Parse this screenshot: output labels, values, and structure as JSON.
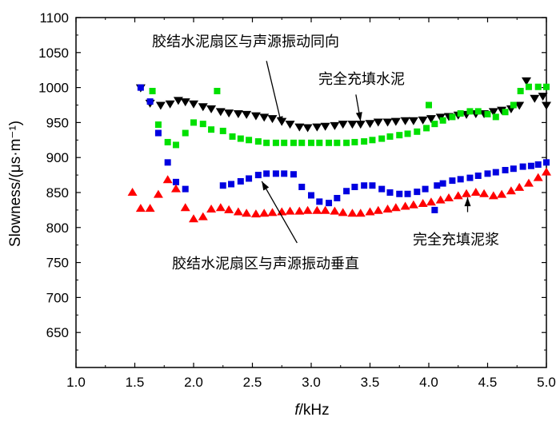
{
  "chart_data": {
    "type": "scatter",
    "xlabel_italic": "f",
    "xlabel_rest": "/kHz",
    "ylabel": "Slowness/(μs·m⁻¹)",
    "xlim": [
      1.0,
      5.0
    ],
    "ylim": [
      600,
      1100
    ],
    "xticks": [
      "1.0",
      "1.5",
      "2.0",
      "2.5",
      "3.0",
      "3.5",
      "4.0",
      "4.5",
      "5.0"
    ],
    "yticks": [
      "650",
      "700",
      "750",
      "800",
      "850",
      "900",
      "950",
      "1000",
      "1050",
      "1100"
    ],
    "series": [
      {
        "name": "完全充填水泥",
        "marker": "triangle-down",
        "color": "#000000",
        "points": [
          [
            1.55,
            1000
          ],
          [
            1.63,
            978
          ],
          [
            1.72,
            975
          ],
          [
            1.8,
            977
          ],
          [
            1.87,
            982
          ],
          [
            1.93,
            980
          ],
          [
            2.0,
            977
          ],
          [
            2.08,
            973
          ],
          [
            2.15,
            970
          ],
          [
            2.23,
            966
          ],
          [
            2.3,
            964
          ],
          [
            2.38,
            963
          ],
          [
            2.45,
            962
          ],
          [
            2.53,
            960
          ],
          [
            2.6,
            958
          ],
          [
            2.67,
            956
          ],
          [
            2.75,
            952
          ],
          [
            2.82,
            948
          ],
          [
            2.9,
            944
          ],
          [
            2.97,
            943
          ],
          [
            3.05,
            944
          ],
          [
            3.12,
            945
          ],
          [
            3.2,
            946
          ],
          [
            3.27,
            948
          ],
          [
            3.35,
            948
          ],
          [
            3.42,
            948
          ],
          [
            3.5,
            949
          ],
          [
            3.57,
            951
          ],
          [
            3.65,
            951
          ],
          [
            3.72,
            952
          ],
          [
            3.8,
            953
          ],
          [
            3.87,
            953
          ],
          [
            3.95,
            954
          ],
          [
            4.02,
            956
          ],
          [
            4.1,
            958
          ],
          [
            4.17,
            959
          ],
          [
            4.25,
            961
          ],
          [
            4.32,
            962
          ],
          [
            4.4,
            963
          ],
          [
            4.47,
            963
          ],
          [
            4.55,
            966
          ],
          [
            4.62,
            968
          ],
          [
            4.7,
            970
          ],
          [
            4.77,
            975
          ],
          [
            4.83,
            1010
          ],
          [
            4.9,
            985
          ],
          [
            4.97,
            988
          ],
          [
            5.0,
            975
          ]
        ]
      },
      {
        "name": "胶结水泥扇区与声源振动同向",
        "marker": "square",
        "color": "#00e000",
        "points": [
          [
            1.65,
            995
          ],
          [
            1.7,
            947
          ],
          [
            1.78,
            922
          ],
          [
            1.85,
            918
          ],
          [
            1.93,
            935
          ],
          [
            2.0,
            950
          ],
          [
            2.08,
            948
          ],
          [
            2.15,
            940
          ],
          [
            2.2,
            995
          ],
          [
            2.25,
            938
          ],
          [
            2.33,
            930
          ],
          [
            2.4,
            927
          ],
          [
            2.47,
            925
          ],
          [
            2.55,
            923
          ],
          [
            2.62,
            921
          ],
          [
            2.7,
            921
          ],
          [
            2.77,
            921
          ],
          [
            2.85,
            921
          ],
          [
            2.92,
            921
          ],
          [
            3.0,
            921
          ],
          [
            3.07,
            921
          ],
          [
            3.15,
            921
          ],
          [
            3.22,
            921
          ],
          [
            3.3,
            921
          ],
          [
            3.37,
            922
          ],
          [
            3.45,
            923
          ],
          [
            3.52,
            925
          ],
          [
            3.6,
            927
          ],
          [
            3.67,
            930
          ],
          [
            3.75,
            932
          ],
          [
            3.82,
            934
          ],
          [
            3.9,
            937
          ],
          [
            3.98,
            942
          ],
          [
            4.0,
            975
          ],
          [
            4.05,
            948
          ],
          [
            4.12,
            953
          ],
          [
            4.2,
            958
          ],
          [
            4.27,
            963
          ],
          [
            4.35,
            966
          ],
          [
            4.42,
            966
          ],
          [
            4.5,
            962
          ],
          [
            4.57,
            958
          ],
          [
            4.65,
            965
          ],
          [
            4.72,
            975
          ],
          [
            4.78,
            995
          ],
          [
            4.85,
            1001
          ],
          [
            4.93,
            1001
          ],
          [
            5.0,
            1001
          ]
        ]
      },
      {
        "name": "胶结水泥扇区与声源振动垂直",
        "marker": "square",
        "color": "#0000e0",
        "points": [
          [
            1.55,
            1000
          ],
          [
            1.63,
            980
          ],
          [
            1.7,
            935
          ],
          [
            1.78,
            893
          ],
          [
            1.85,
            865
          ],
          [
            1.93,
            855
          ],
          [
            2.25,
            860
          ],
          [
            2.32,
            862
          ],
          [
            2.4,
            866
          ],
          [
            2.47,
            870
          ],
          [
            2.55,
            875
          ],
          [
            2.62,
            877
          ],
          [
            2.7,
            877
          ],
          [
            2.77,
            877
          ],
          [
            2.85,
            876
          ],
          [
            2.92,
            858
          ],
          [
            3.0,
            846
          ],
          [
            3.07,
            837
          ],
          [
            3.15,
            835
          ],
          [
            3.22,
            842
          ],
          [
            3.3,
            852
          ],
          [
            3.37,
            858
          ],
          [
            3.45,
            860
          ],
          [
            3.52,
            860
          ],
          [
            3.6,
            855
          ],
          [
            3.67,
            850
          ],
          [
            3.75,
            848
          ],
          [
            3.82,
            848
          ],
          [
            3.9,
            851
          ],
          [
            3.97,
            855
          ],
          [
            4.05,
            825
          ],
          [
            4.07,
            860
          ],
          [
            4.12,
            863
          ],
          [
            4.2,
            867
          ],
          [
            4.27,
            869
          ],
          [
            4.35,
            871
          ],
          [
            4.42,
            874
          ],
          [
            4.5,
            877
          ],
          [
            4.57,
            879
          ],
          [
            4.65,
            882
          ],
          [
            4.72,
            884
          ],
          [
            4.8,
            887
          ],
          [
            4.87,
            888
          ],
          [
            4.93,
            890
          ],
          [
            5.0,
            893
          ]
        ]
      },
      {
        "name": "完全充填泥浆",
        "marker": "triangle-up",
        "color": "#ff0000",
        "points": [
          [
            1.48,
            850
          ],
          [
            1.55,
            827
          ],
          [
            1.63,
            827
          ],
          [
            1.7,
            847
          ],
          [
            1.78,
            868
          ],
          [
            1.85,
            855
          ],
          [
            1.93,
            828
          ],
          [
            2.0,
            812
          ],
          [
            2.08,
            815
          ],
          [
            2.15,
            826
          ],
          [
            2.23,
            828
          ],
          [
            2.3,
            825
          ],
          [
            2.38,
            822
          ],
          [
            2.45,
            820
          ],
          [
            2.53,
            819
          ],
          [
            2.6,
            820
          ],
          [
            2.67,
            821
          ],
          [
            2.75,
            822
          ],
          [
            2.82,
            823
          ],
          [
            2.9,
            823
          ],
          [
            2.97,
            824
          ],
          [
            3.05,
            824
          ],
          [
            3.12,
            824
          ],
          [
            3.2,
            823
          ],
          [
            3.27,
            821
          ],
          [
            3.35,
            820
          ],
          [
            3.42,
            820
          ],
          [
            3.5,
            822
          ],
          [
            3.57,
            824
          ],
          [
            3.65,
            826
          ],
          [
            3.72,
            828
          ],
          [
            3.8,
            830
          ],
          [
            3.87,
            832
          ],
          [
            3.95,
            834
          ],
          [
            4.02,
            836
          ],
          [
            4.1,
            839
          ],
          [
            4.17,
            842
          ],
          [
            4.25,
            845
          ],
          [
            4.32,
            848
          ],
          [
            4.4,
            850
          ],
          [
            4.47,
            848
          ],
          [
            4.55,
            845
          ],
          [
            4.62,
            847
          ],
          [
            4.7,
            852
          ],
          [
            4.77,
            857
          ],
          [
            4.85,
            863
          ],
          [
            4.93,
            871
          ],
          [
            5.0,
            879
          ]
        ]
      }
    ],
    "annotations": [
      {
        "text": "胶结水泥扇区与声源振动同向",
        "arrow_from": [
          2.62,
          1038
        ],
        "arrow_to": [
          2.75,
          946
        ]
      },
      {
        "text": "完全充填水泥",
        "arrow_from": [
          3.38,
          990
        ],
        "arrow_to": [
          3.42,
          952
        ]
      },
      {
        "text": "胶结水泥扇区与声源振动垂直",
        "arrow_from": [
          2.88,
          778
        ],
        "arrow_to": [
          2.58,
          866
        ]
      },
      {
        "text": "完全充填泥浆",
        "arrow_from": [
          4.33,
          822
        ],
        "arrow_to": [
          4.33,
          843
        ]
      }
    ]
  }
}
